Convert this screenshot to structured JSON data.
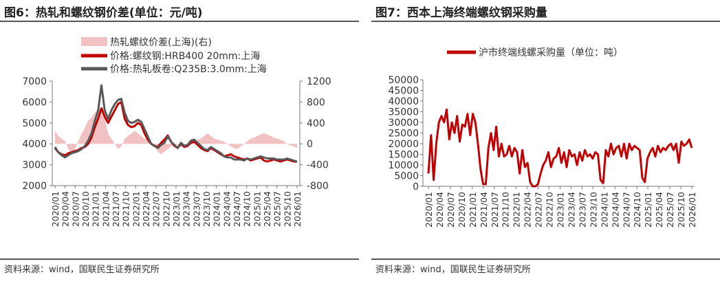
{
  "left": {
    "title": "图6：热轧和螺纹钢价差(单位：元/吨)",
    "source": "资料来源：wind，国联民生证券研究所",
    "chart_data": {
      "type": "line",
      "legend": [
        "热轧螺纹价差(上海)(右)",
        "价格:螺纹钢:HRB400 20mm:上海",
        "价格:热轧板卷:Q235B:3.0mm:上海"
      ],
      "legend_placement": "top-left",
      "yticks_left": [
        "7000",
        "6000",
        "5000",
        "4000",
        "3000",
        "2000"
      ],
      "yticks_right": [
        "1200",
        "800",
        "400",
        "0",
        "-400",
        "-800"
      ],
      "ylim_left": [
        2000,
        7000
      ],
      "ylim_right": [
        -800,
        1200
      ],
      "xticks": [
        "2020/01",
        "2020/04",
        "2020/07",
        "2020/10",
        "2021/01",
        "2021/04",
        "2021/07",
        "2021/10",
        "2022/01",
        "2022/04",
        "2022/07",
        "2022/10",
        "2023/01",
        "2023/04",
        "2023/07",
        "2023/10",
        "2024/01",
        "2024/04",
        "2024/07",
        "2024/10",
        "2025/01",
        "2025/04",
        "2025/07",
        "2025/10",
        "2026/01"
      ],
      "grid": false,
      "colors": {
        "spread": "#f2c2c2",
        "rebar": "#c00000",
        "hrc": "#595959"
      },
      "series": [
        {
          "name": "热轧螺纹价差(上海)(右)",
          "type": "area",
          "axis": "right",
          "values": [
            250,
            150,
            100,
            50,
            -100,
            -200,
            -100,
            50,
            200,
            300,
            450,
            500,
            600,
            650,
            700,
            500,
            200,
            100,
            0,
            -100,
            -50,
            100,
            150,
            200,
            250,
            200,
            150,
            100,
            80,
            0,
            -50,
            -150,
            -200,
            -150,
            -100,
            -50,
            0,
            -20,
            -50,
            -80,
            0,
            20,
            50,
            80,
            100,
            150,
            200,
            150,
            100,
            80,
            60,
            40,
            0,
            -50,
            -80,
            -100,
            -50,
            0,
            50,
            100,
            120,
            150,
            180,
            200,
            180,
            150,
            120,
            100,
            80,
            50,
            0,
            -30,
            -50,
            -80
          ]
        },
        {
          "name": "价格:螺纹钢:HRB400 20mm:上海",
          "type": "line",
          "axis": "left",
          "values": [
            3800,
            3600,
            3500,
            3450,
            3550,
            3600,
            3650,
            3700,
            3800,
            3850,
            4000,
            4300,
            4800,
            5200,
            5700,
            5300,
            5000,
            5300,
            5600,
            5900,
            6000,
            5200,
            4900,
            4800,
            4850,
            5000,
            4900,
            4500,
            4200,
            4000,
            3900,
            3850,
            4050,
            4200,
            4400,
            4100,
            3900,
            3800,
            4000,
            3850,
            3900,
            4050,
            4100,
            3950,
            3800,
            3700,
            3650,
            3800,
            3700,
            3600,
            3500,
            3400,
            3450,
            3500,
            3400,
            3350,
            3300,
            3250,
            3300,
            3200,
            3250,
            3300,
            3350,
            3200,
            3150,
            3200,
            3250,
            3200,
            3150,
            3200,
            3250,
            3200,
            3150,
            3150
          ]
        },
        {
          "name": "价格:热轧板卷:Q235B:3.0mm:上海",
          "type": "line",
          "axis": "left",
          "values": [
            3850,
            3600,
            3450,
            3350,
            3450,
            3550,
            3600,
            3650,
            3750,
            3900,
            4150,
            4500,
            5100,
            5600,
            6800,
            5600,
            5200,
            5600,
            5900,
            6100,
            6150,
            5500,
            5100,
            5000,
            5050,
            5150,
            5050,
            4700,
            4350,
            4000,
            3900,
            3800,
            3950,
            4050,
            4350,
            4100,
            3950,
            3800,
            4050,
            3900,
            3950,
            4150,
            4200,
            4050,
            3900,
            3750,
            3700,
            3850,
            3750,
            3650,
            3550,
            3400,
            3350,
            3350,
            3250,
            3250,
            3250,
            3200,
            3300,
            3250,
            3300,
            3350,
            3400,
            3350,
            3300,
            3300,
            3300,
            3250,
            3250,
            3250,
            3300,
            3250,
            3200,
            3150
          ]
        }
      ]
    }
  },
  "right": {
    "title": "图7：西本上海终端螺纹钢采购量",
    "source": "资料来源：wind，国联民生证券研究所",
    "chart_data": {
      "type": "line",
      "legend": [
        "沪市终端线螺采购量（单位：吨）"
      ],
      "legend_placement": "top",
      "yticks": [
        "50000",
        "45000",
        "40000",
        "35000",
        "30000",
        "25000",
        "20000",
        "15000",
        "10000",
        "5000",
        "0"
      ],
      "ylim": [
        0,
        50000
      ],
      "xticks": [
        "2020/01",
        "2020/04",
        "2020/07",
        "2020/10",
        "2021/01",
        "2021/04",
        "2021/07",
        "2021/10",
        "2022/01",
        "2022/04",
        "2022/07",
        "2022/10",
        "2023/01",
        "2023/04",
        "2023/07",
        "2023/10",
        "2024/01",
        "2024/04",
        "2024/07",
        "2024/10",
        "2025/01",
        "2025/04",
        "2025/07",
        "2025/10",
        "2026/01"
      ],
      "grid": false,
      "colors": {
        "line": "#c00000"
      },
      "series": [
        {
          "name": "沪市终端线螺采购量（单位：吨）",
          "values": [
            6000,
            24000,
            3000,
            20000,
            30000,
            33000,
            30000,
            36000,
            22000,
            30000,
            25000,
            33000,
            21000,
            29000,
            28000,
            34000,
            24000,
            34000,
            30000,
            20000,
            8000,
            1000,
            1000,
            18000,
            25000,
            17000,
            28000,
            14000,
            20000,
            14000,
            15000,
            19000,
            14000,
            18000,
            16000,
            6000,
            17000,
            9000,
            11000,
            2000,
            0,
            0,
            1000,
            6000,
            10000,
            12000,
            16000,
            9000,
            13000,
            14000,
            18000,
            11000,
            16000,
            9000,
            17000,
            14000,
            15000,
            10000,
            16000,
            12000,
            17000,
            14000,
            15000,
            13000,
            16000,
            15000,
            3000,
            1500,
            17000,
            14000,
            20000,
            15000,
            18000,
            19000,
            14000,
            20000,
            13000,
            20000,
            17000,
            19000,
            18000,
            17000,
            4000,
            2000,
            13000,
            16000,
            18000,
            14000,
            19000,
            16000,
            18000,
            17000,
            19000,
            20000,
            17000,
            20000,
            11000,
            21000,
            19000,
            20000,
            22000,
            18000
          ]
        }
      ]
    }
  }
}
